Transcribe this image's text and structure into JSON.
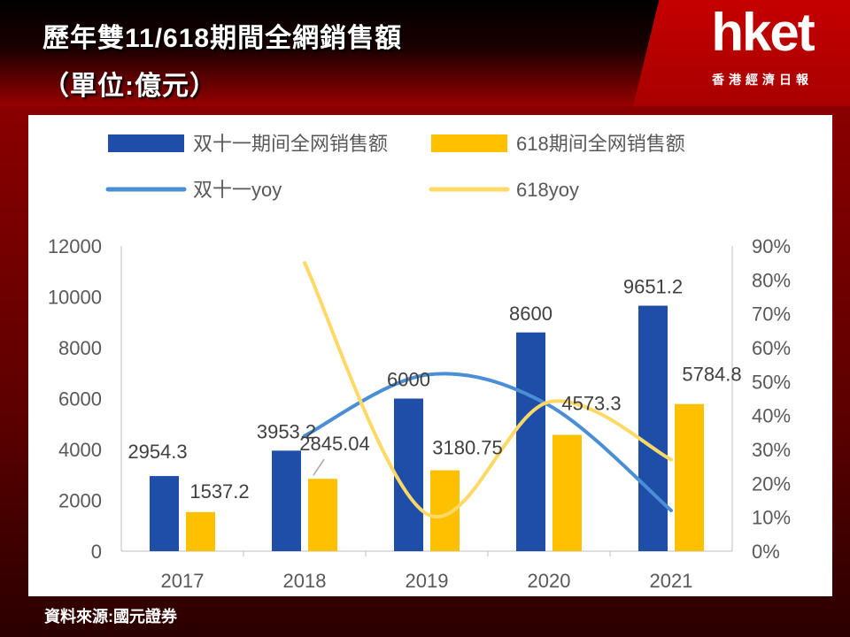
{
  "header": {
    "title_line1": "歷年雙11/618期間全網銷售額",
    "title_line2": "（單位:億元）",
    "logo": "hket",
    "logo_sub": "香港經濟日報"
  },
  "source": "資料來源:國元證券",
  "colors": {
    "bar_double11": "#1f4ea8",
    "bar_618": "#ffc000",
    "line_double11": "#4a8fd6",
    "line_618": "#ffd966"
  },
  "chart_data": {
    "type": "bar",
    "categories": [
      "2017",
      "2018",
      "2019",
      "2020",
      "2021"
    ],
    "ylim": [
      0,
      12000
    ],
    "yticks": [
      "0",
      "2000",
      "4000",
      "6000",
      "8000",
      "10000",
      "12000"
    ],
    "y2lim": [
      0,
      90
    ],
    "y2ticks": [
      "0%",
      "10%",
      "20%",
      "30%",
      "40%",
      "50%",
      "60%",
      "70%",
      "80%",
      "90%"
    ],
    "series": [
      {
        "name": "双十一期间全网销售额",
        "kind": "bar",
        "axis": "left",
        "values": [
          2954.3,
          3953.2,
          6000,
          8600,
          9651.2
        ],
        "labels": [
          "2954.3",
          "3953.2",
          "6000",
          "8600",
          "9651.2"
        ]
      },
      {
        "name": "618期间全网销售额",
        "kind": "bar",
        "axis": "left",
        "values": [
          1537.2,
          2845.04,
          3180.75,
          4573.3,
          5784.8
        ],
        "labels": [
          "1537.2",
          "2845.04",
          "3180.75",
          "4573.3",
          "5784.8"
        ]
      },
      {
        "name": "双十一yoy",
        "kind": "line",
        "axis": "right",
        "values": [
          null,
          34,
          52,
          43,
          12
        ]
      },
      {
        "name": "618yoy",
        "kind": "line",
        "axis": "right",
        "values": [
          null,
          85,
          11,
          44,
          27
        ]
      }
    ],
    "legend": "top"
  }
}
